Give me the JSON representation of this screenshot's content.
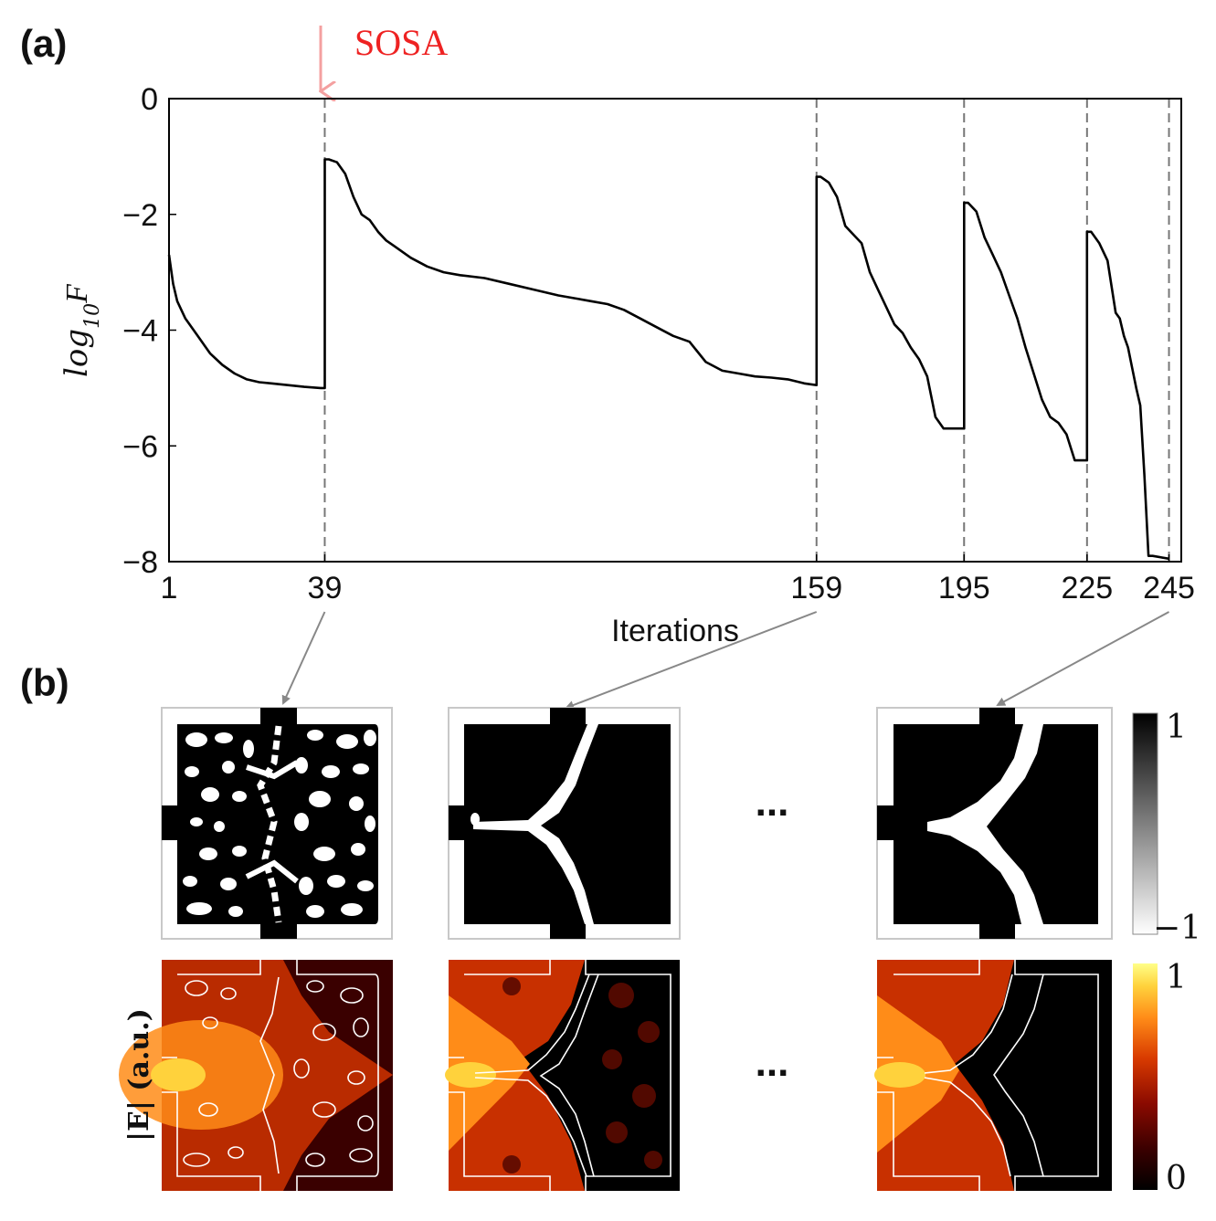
{
  "panel_labels": {
    "a": "(a)",
    "b": "(b)"
  },
  "annotation": {
    "text": "SOSA",
    "color": "#ee2222",
    "arrow_color": "#f4a0a0"
  },
  "ellipsis": "...",
  "chart_data": {
    "type": "line",
    "title": "",
    "xlabel": "Iterations",
    "ylabel": "log10F",
    "ylabel_parts": {
      "base": "log",
      "sub": "10",
      "symbol": "F"
    },
    "xlim": [
      1,
      248
    ],
    "ylim": [
      -8,
      0
    ],
    "xticks": [
      1,
      39,
      159,
      195,
      225,
      245
    ],
    "yticks": [
      0,
      -2,
      -4,
      -6,
      -8
    ],
    "ytick_labels": [
      "0",
      "−2",
      "−4",
      "−6",
      "−8"
    ],
    "vlines": [
      39,
      159,
      195,
      225,
      245
    ],
    "series": [
      {
        "name": "log10F",
        "x": [
          1,
          2,
          3,
          5,
          8,
          11,
          14,
          17,
          20,
          23,
          26,
          30,
          34,
          38,
          39,
          39,
          40,
          42,
          44,
          46,
          48,
          50,
          52,
          54,
          56,
          60,
          64,
          68,
          72,
          78,
          84,
          90,
          96,
          100,
          104,
          108,
          112,
          116,
          120,
          124,
          128,
          132,
          136,
          140,
          144,
          148,
          152,
          156,
          159,
          159,
          160,
          162,
          164,
          166,
          168,
          170,
          172,
          174,
          176,
          178,
          180,
          182,
          184,
          186,
          188,
          190,
          191,
          193,
          195,
          195,
          196,
          198,
          200,
          202,
          204,
          206,
          208,
          210,
          212,
          214,
          216,
          218,
          220,
          222,
          225,
          225,
          226,
          228,
          230,
          232,
          233,
          234,
          235,
          236,
          237,
          238,
          239,
          240,
          241,
          245
        ],
        "y": [
          -2.7,
          -3.2,
          -3.5,
          -3.8,
          -4.1,
          -4.4,
          -4.6,
          -4.75,
          -4.85,
          -4.9,
          -4.92,
          -4.95,
          -4.98,
          -5.0,
          -5.0,
          -1.05,
          -1.05,
          -1.1,
          -1.3,
          -1.7,
          -2.0,
          -2.1,
          -2.3,
          -2.45,
          -2.55,
          -2.75,
          -2.9,
          -3.0,
          -3.05,
          -3.1,
          -3.2,
          -3.3,
          -3.4,
          -3.45,
          -3.5,
          -3.55,
          -3.65,
          -3.8,
          -3.95,
          -4.1,
          -4.2,
          -4.55,
          -4.7,
          -4.75,
          -4.8,
          -4.82,
          -4.85,
          -4.92,
          -4.95,
          -1.35,
          -1.35,
          -1.45,
          -1.7,
          -2.2,
          -2.35,
          -2.5,
          -3.0,
          -3.3,
          -3.6,
          -3.9,
          -4.05,
          -4.3,
          -4.5,
          -4.8,
          -5.5,
          -5.7,
          -5.7,
          -5.7,
          -5.7,
          -1.8,
          -1.8,
          -1.95,
          -2.4,
          -2.7,
          -3.0,
          -3.4,
          -3.8,
          -4.3,
          -4.75,
          -5.2,
          -5.5,
          -5.6,
          -5.8,
          -6.25,
          -6.25,
          -2.3,
          -2.3,
          -2.5,
          -2.8,
          -3.7,
          -3.8,
          -4.1,
          -4.3,
          -4.65,
          -5.0,
          -5.3,
          -6.5,
          -7.9,
          -7.9,
          -7.95
        ]
      }
    ]
  },
  "colorbar_density": {
    "max_label": "1",
    "min_label": "−1",
    "colors": [
      "#000000",
      "#ffffff"
    ]
  },
  "colorbar_field": {
    "max_label": "1",
    "min_label": "0",
    "colors": [
      "#000000",
      "#3a0000",
      "#8a0a00",
      "#d83a00",
      "#ff8c18",
      "#ffd23c",
      "#ffff88"
    ]
  },
  "field_axis_label": "|E| (a.u.)",
  "snapshot_iterations": [
    39,
    159,
    245
  ]
}
